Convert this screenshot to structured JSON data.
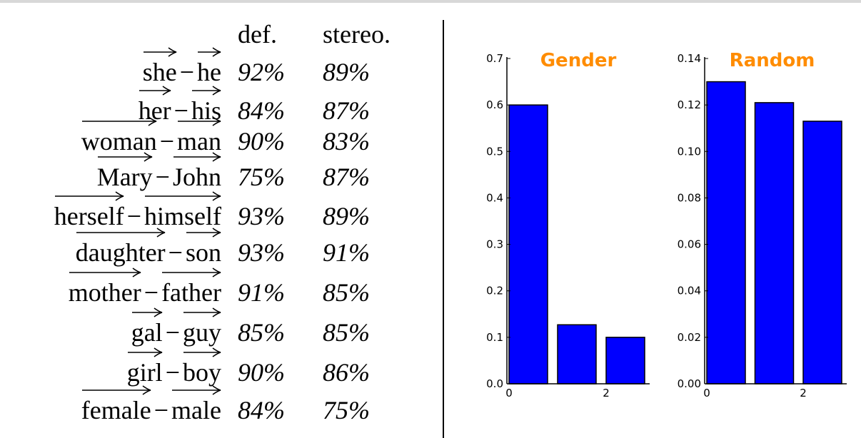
{
  "table": {
    "headers": {
      "def": "def.",
      "stereo": "stereo."
    },
    "rows": [
      {
        "a": "she",
        "b": "he",
        "def": "92%",
        "stereo": "89%"
      },
      {
        "a": "her",
        "b": "his",
        "def": "84%",
        "stereo": "87%"
      },
      {
        "a": "woman",
        "b": "man",
        "def": "90%",
        "stereo": "83%"
      },
      {
        "a": "Mary",
        "b": "John",
        "def": "75%",
        "stereo": "87%"
      },
      {
        "a": "herself",
        "b": "himself",
        "def": "93%",
        "stereo": "89%"
      },
      {
        "a": "daughter",
        "b": "son",
        "def": "93%",
        "stereo": "91%"
      },
      {
        "a": "mother",
        "b": "father",
        "def": "91%",
        "stereo": "85%"
      },
      {
        "a": "gal",
        "b": "guy",
        "def": "85%",
        "stereo": "85%"
      },
      {
        "a": "girl",
        "b": "boy",
        "def": "90%",
        "stereo": "86%"
      },
      {
        "a": "female",
        "b": "male",
        "def": "84%",
        "stereo": "75%"
      }
    ]
  },
  "chart_data": [
    {
      "type": "bar",
      "title": "Gender",
      "title_color": "#ff8c00",
      "bar_color": "#0000ff",
      "x": [
        0,
        1,
        2
      ],
      "values": [
        0.6,
        0.127,
        0.1
      ],
      "ylim": [
        0,
        0.7
      ],
      "yticks": [
        "0.0",
        "0.1",
        "0.2",
        "0.3",
        "0.4",
        "0.5",
        "0.6",
        "0.7"
      ],
      "xticks": [
        "0",
        "2"
      ],
      "grid": false
    },
    {
      "type": "bar",
      "title": "Random",
      "title_color": "#ff8c00",
      "bar_color": "#0000ff",
      "x": [
        0,
        1,
        2
      ],
      "values": [
        0.13,
        0.121,
        0.113
      ],
      "ylim": [
        0,
        0.14
      ],
      "yticks": [
        "0.00",
        "0.02",
        "0.04",
        "0.06",
        "0.08",
        "0.10",
        "0.12",
        "0.14"
      ],
      "xticks": [
        "0",
        "2"
      ],
      "grid": false
    }
  ]
}
